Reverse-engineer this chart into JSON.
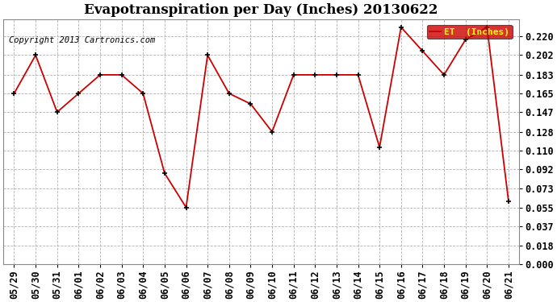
{
  "title": "Evapotranspiration per Day (Inches) 20130622",
  "copyright": "Copyright 2013 Cartronics.com",
  "legend_label": "ET  (Inches)",
  "dates": [
    "05/29",
    "05/30",
    "05/31",
    "06/01",
    "06/02",
    "06/03",
    "06/04",
    "06/05",
    "06/06",
    "06/07",
    "06/08",
    "06/09",
    "06/10",
    "06/11",
    "06/12",
    "06/13",
    "06/14",
    "06/15",
    "06/16",
    "06/17",
    "06/18",
    "06/19",
    "06/20",
    "06/21"
  ],
  "values": [
    0.165,
    0.202,
    0.147,
    0.165,
    0.183,
    0.183,
    0.165,
    0.088,
    0.055,
    0.202,
    0.165,
    0.155,
    0.128,
    0.183,
    0.183,
    0.183,
    0.183,
    0.113,
    0.229,
    0.206,
    0.183,
    0.217,
    0.229,
    0.061
  ],
  "ylim": [
    0.0,
    0.2365
  ],
  "yticks": [
    0.0,
    0.018,
    0.037,
    0.055,
    0.073,
    0.092,
    0.11,
    0.128,
    0.147,
    0.165,
    0.183,
    0.202,
    0.22
  ],
  "line_color": "#CC0000",
  "marker_color": "#000000",
  "bg_color": "#FFFFFF",
  "plot_bg_color": "#FFFFFF",
  "grid_color": "#AAAAAA",
  "legend_bg": "#CC0000",
  "legend_text_color": "#FFFF00",
  "title_fontsize": 12,
  "copyright_fontsize": 7.5,
  "tick_fontsize": 8.5
}
